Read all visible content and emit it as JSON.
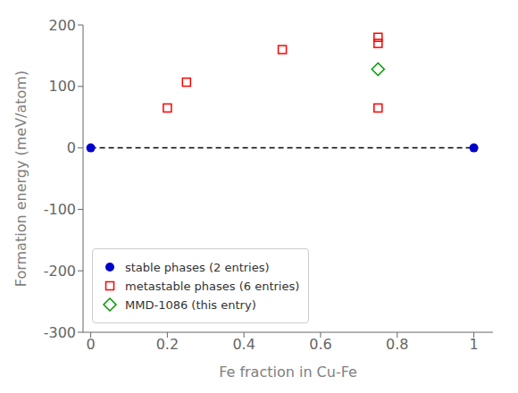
{
  "chart_data": {
    "type": "scatter",
    "xlabel": "Fe fraction in Cu-Fe",
    "ylabel": "Formation energy (meV/atom)",
    "xlim": [
      -0.02,
      1.05
    ],
    "ylim": [
      -300,
      200
    ],
    "xticks": [
      0.0,
      0.2,
      0.4,
      0.6,
      0.8,
      1.0
    ],
    "yticks": [
      -300,
      -200,
      -100,
      0,
      100,
      200
    ],
    "grid": false,
    "legend": "lower left",
    "series": [
      {
        "type": "line",
        "line_style": "dashed",
        "color": "#000000",
        "x": [
          0.0,
          1.0
        ],
        "values": [
          0.0,
          0.0
        ]
      },
      {
        "name": "stable phases (2 entries)",
        "color": "#0000cc",
        "marker": "circle",
        "x": [
          0.0,
          1.0
        ],
        "values": [
          0.0,
          0.0
        ]
      },
      {
        "name": "metastable phases (6 entries)",
        "color": "#ff0000",
        "marker": "square",
        "x": [
          0.2,
          0.25,
          0.5,
          0.75,
          0.75,
          0.75
        ],
        "values": [
          65,
          107,
          160,
          170,
          65,
          180
        ]
      },
      {
        "name": "MMD-1086 (this entry)",
        "color": "#009900",
        "marker": "diamond",
        "x": [
          0.75
        ],
        "values": [
          128
        ]
      }
    ]
  }
}
